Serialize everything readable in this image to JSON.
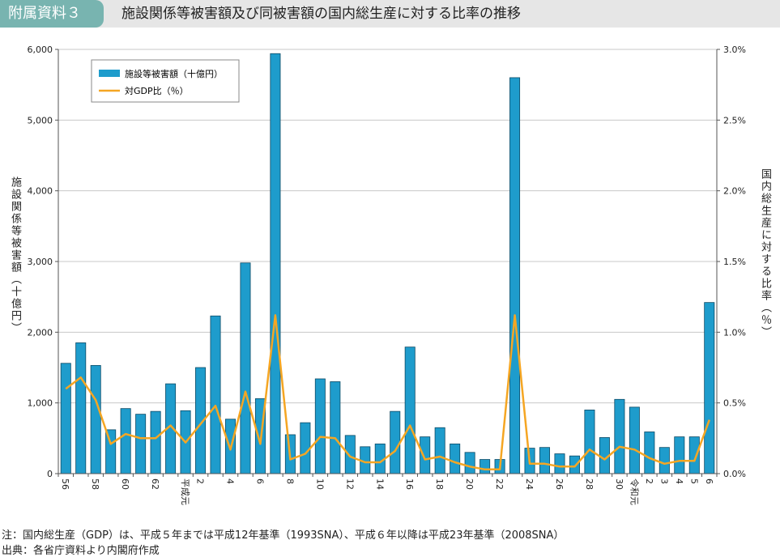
{
  "header": {
    "tag": "附属資料３",
    "title": "施設関係等被害額及び同被害額の国内総生産に対する比率の推移"
  },
  "chart_data": {
    "type": "bar",
    "categories": [
      "56",
      "57",
      "58",
      "59",
      "60",
      "61",
      "62",
      "63",
      "平成元",
      "2",
      "3",
      "4",
      "5",
      "6",
      "7",
      "8",
      "9",
      "10",
      "11",
      "12",
      "13",
      "14",
      "15",
      "16",
      "17",
      "18",
      "19",
      "20",
      "21",
      "22",
      "23",
      "24",
      "25",
      "26",
      "27",
      "28",
      "29",
      "30",
      "令和元",
      "2",
      "3",
      "4",
      "5",
      "6"
    ],
    "x_tick_labels": [
      "56",
      "",
      "58",
      "",
      "60",
      "",
      "62",
      "",
      "平成元",
      "2",
      "",
      "4",
      "",
      "6",
      "",
      "8",
      "",
      "10",
      "",
      "12",
      "",
      "14",
      "",
      "16",
      "",
      "18",
      "",
      "20",
      "",
      "22",
      "",
      "24",
      "",
      "26",
      "",
      "28",
      "",
      "30",
      "令和元",
      "2",
      "3",
      "4",
      "5",
      "6"
    ],
    "series": [
      {
        "name": "施設等被害額（十億円）",
        "type": "bar",
        "axis": "left",
        "color": "#1e9ccc",
        "values": [
          1560,
          1850,
          1530,
          620,
          920,
          840,
          880,
          1270,
          890,
          1500,
          2230,
          770,
          2980,
          1060,
          5940,
          550,
          720,
          1340,
          1300,
          540,
          380,
          420,
          880,
          1790,
          520,
          650,
          420,
          300,
          200,
          200,
          5600,
          360,
          370,
          280,
          250,
          900,
          510,
          1050,
          940,
          590,
          370,
          520,
          520,
          2420
        ]
      },
      {
        "name": "対GDP比（％）",
        "type": "line",
        "axis": "right",
        "color": "#f5a623",
        "values": [
          0.6,
          0.68,
          0.52,
          0.21,
          0.28,
          0.25,
          0.25,
          0.34,
          0.22,
          0.35,
          0.48,
          0.17,
          0.58,
          0.21,
          1.12,
          0.1,
          0.14,
          0.26,
          0.25,
          0.12,
          0.08,
          0.08,
          0.16,
          0.34,
          0.1,
          0.12,
          0.08,
          0.05,
          0.03,
          0.03,
          1.12,
          0.07,
          0.07,
          0.05,
          0.05,
          0.17,
          0.1,
          0.19,
          0.17,
          0.11,
          0.07,
          0.09,
          0.09,
          0.38
        ]
      }
    ],
    "y_left": {
      "min": 0,
      "max": 6000,
      "ticks": [
        "0",
        "1,000",
        "2,000",
        "3,000",
        "4,000",
        "5,000",
        "6,000"
      ],
      "label": "施設関係等被害額（十億円）"
    },
    "y_right": {
      "min": 0,
      "max": 3.0,
      "ticks": [
        "0.0%",
        "0.5%",
        "1.0%",
        "1.5%",
        "2.0%",
        "2.5%",
        "3.0%"
      ],
      "label": "国内総生産に対する比率（％）"
    },
    "grid": true,
    "legend_position": "top-left"
  },
  "footer": {
    "note": "注：国内総生産（GDP）は、平成５年までは平成12年基準（1993SNA）、平成６年以降は平成23年基準（2008SNA）",
    "source": "出典：各省庁資料より内閣府作成"
  }
}
